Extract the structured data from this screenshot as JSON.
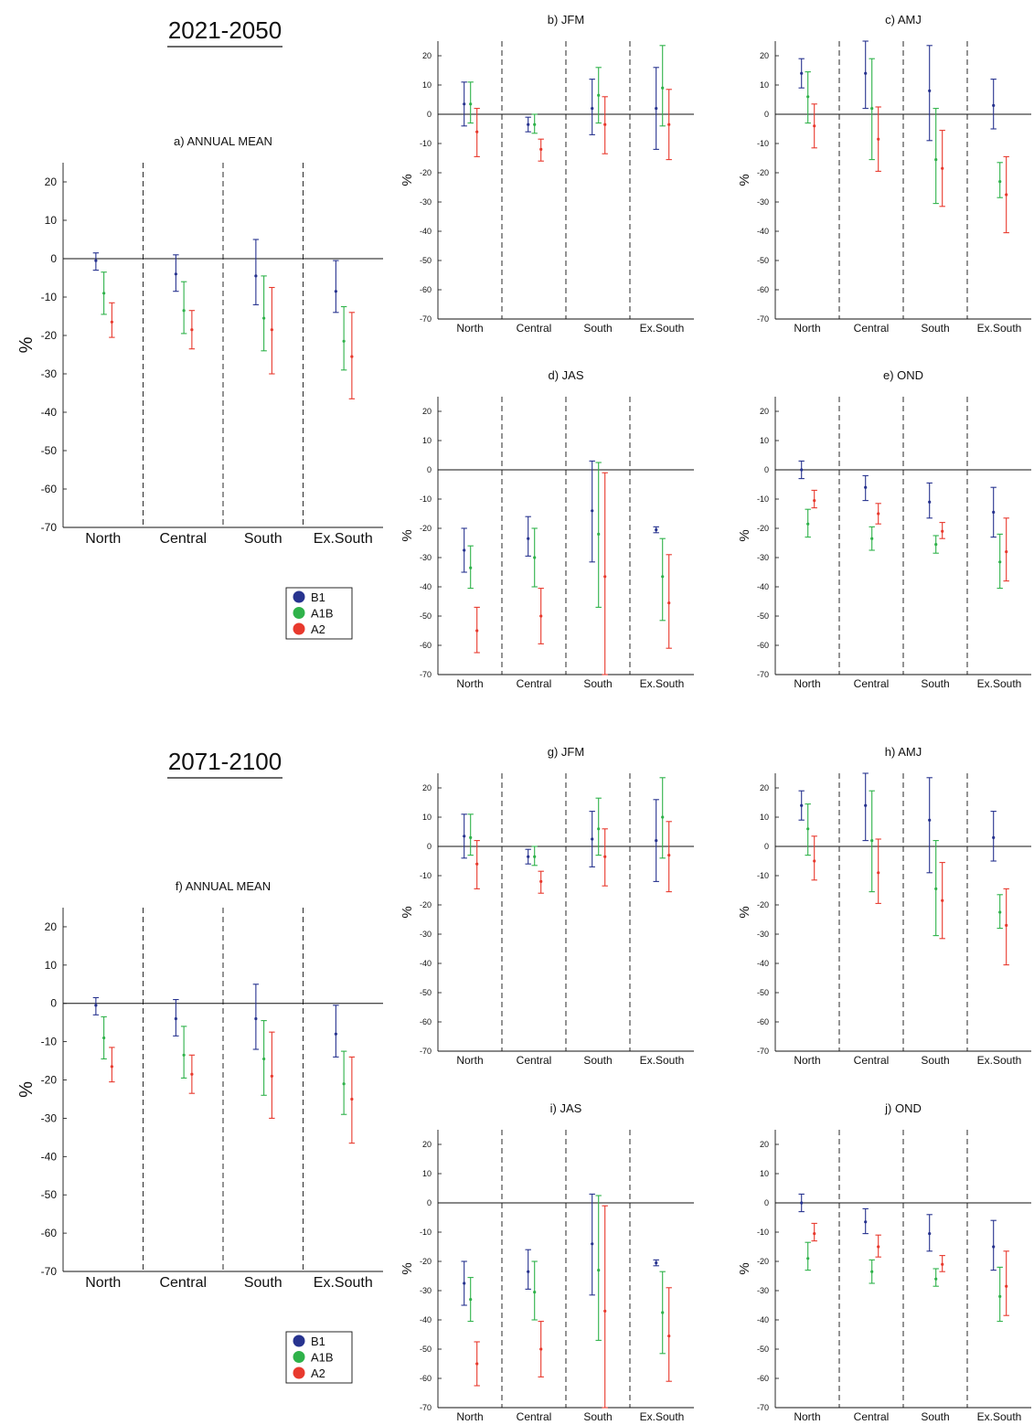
{
  "periods": [
    {
      "title": "2021-2050"
    },
    {
      "title": "2071-2100"
    }
  ],
  "legend": [
    {
      "name": "B1",
      "color": "#27338f"
    },
    {
      "name": "A1B",
      "color": "#2fb24a"
    },
    {
      "name": "A2",
      "color": "#e8392d"
    }
  ],
  "chart_data": [
    {
      "type": "errorbar",
      "title": "a) ANNUAL MEAN",
      "ylabel": "%",
      "ylim": [
        -70,
        25
      ],
      "yticks": [
        20,
        10,
        0,
        -10,
        -20,
        -30,
        -40,
        -50,
        -60,
        -70
      ],
      "categories": [
        "North",
        "Central",
        "South",
        "Ex.South"
      ],
      "series": [
        {
          "name": "B1",
          "values": [
            [
              -0.5,
              -3,
              1.5
            ],
            [
              -4,
              -8.5,
              1
            ],
            [
              -4.5,
              -12,
              5
            ],
            [
              -8.5,
              -14,
              -0.5
            ]
          ]
        },
        {
          "name": "A1B",
          "values": [
            [
              -9,
              -14.5,
              -3.5
            ],
            [
              -13.5,
              -19.5,
              -6
            ],
            [
              -15.5,
              -24,
              -4.5
            ],
            [
              -21.5,
              -29,
              -12.5
            ]
          ]
        },
        {
          "name": "A2",
          "values": [
            [
              -16.5,
              -20.5,
              -11.5
            ],
            [
              -18.5,
              -23.5,
              -13.5
            ],
            [
              -18.5,
              -30,
              -7.5
            ],
            [
              -25.5,
              -36.5,
              -14
            ]
          ]
        }
      ]
    },
    {
      "type": "errorbar",
      "title": "b) JFM",
      "ylabel": "%",
      "ylim": [
        -70,
        25
      ],
      "yticks": [
        20,
        10,
        0,
        -10,
        -20,
        -30,
        -40,
        -50,
        -60,
        -70
      ],
      "categories": [
        "North",
        "Central",
        "South",
        "Ex.South"
      ],
      "series": [
        {
          "name": "B1",
          "values": [
            [
              3.5,
              -4,
              11
            ],
            [
              -3.5,
              -6,
              -1
            ],
            [
              2,
              -7,
              12
            ],
            [
              2,
              -12,
              16
            ]
          ]
        },
        {
          "name": "A1B",
          "values": [
            [
              3.5,
              -3,
              11
            ],
            [
              -3.5,
              -6.5,
              0
            ],
            [
              6.5,
              -3,
              16
            ],
            [
              9,
              -4,
              23.5
            ]
          ]
        },
        {
          "name": "A2",
          "values": [
            [
              -6,
              -14.5,
              2
            ],
            [
              -12,
              -16,
              -8.5
            ],
            [
              -3.5,
              -13.5,
              6
            ],
            [
              -3.5,
              -15.5,
              8.5
            ]
          ]
        }
      ]
    },
    {
      "type": "errorbar",
      "title": "c) AMJ",
      "ylabel": "%",
      "ylim": [
        -70,
        25
      ],
      "yticks": [
        20,
        10,
        0,
        -10,
        -20,
        -30,
        -40,
        -50,
        -60,
        -70
      ],
      "categories": [
        "North",
        "Central",
        "South",
        "Ex.South"
      ],
      "series": [
        {
          "name": "B1",
          "values": [
            [
              14,
              9,
              19
            ],
            [
              14,
              2,
              25
            ],
            [
              8,
              -9,
              23.5
            ],
            [
              3,
              -5,
              12
            ]
          ]
        },
        {
          "name": "A1B",
          "values": [
            [
              6,
              -3,
              14.5
            ],
            [
              2,
              -15.5,
              19
            ],
            [
              -15.5,
              -30.5,
              2
            ],
            [
              -23,
              -28.5,
              -16.5
            ]
          ]
        },
        {
          "name": "A2",
          "values": [
            [
              -4,
              -11.5,
              3.5
            ],
            [
              -8.5,
              -19.5,
              2.5
            ],
            [
              -18.5,
              -31.5,
              -5.5
            ],
            [
              -27.5,
              -40.5,
              -14.5
            ]
          ]
        }
      ]
    },
    {
      "type": "errorbar",
      "title": "d) JAS",
      "ylabel": "%",
      "ylim": [
        -70,
        25
      ],
      "yticks": [
        20,
        10,
        0,
        -10,
        -20,
        -30,
        -40,
        -50,
        -60,
        -70
      ],
      "categories": [
        "North",
        "Central",
        "South",
        "Ex.South"
      ],
      "series": [
        {
          "name": "B1",
          "values": [
            [
              -27.5,
              -35,
              -20
            ],
            [
              -23.5,
              -29.5,
              -16
            ],
            [
              -14,
              -31.5,
              3
            ],
            [
              -20.5,
              -21.5,
              -19.5
            ]
          ]
        },
        {
          "name": "A1B",
          "values": [
            [
              -33.5,
              -40.5,
              -26
            ],
            [
              -30,
              -40,
              -20
            ],
            [
              -22,
              -47,
              2.5
            ],
            [
              -36.5,
              -51.5,
              -23.5
            ]
          ]
        },
        {
          "name": "A2",
          "values": [
            [
              -55,
              -62.5,
              -47
            ],
            [
              -50,
              -59.5,
              -40.5
            ],
            [
              -36.5,
              -70,
              -1
            ],
            [
              -45.5,
              -61,
              -29
            ]
          ]
        }
      ]
    },
    {
      "type": "errorbar",
      "title": "e) OND",
      "ylabel": "%",
      "ylim": [
        -70,
        25
      ],
      "yticks": [
        20,
        10,
        0,
        -10,
        -20,
        -30,
        -40,
        -50,
        -60,
        -70
      ],
      "categories": [
        "North",
        "Central",
        "South",
        "Ex.South"
      ],
      "series": [
        {
          "name": "B1",
          "values": [
            [
              0,
              -3,
              3
            ],
            [
              -6,
              -10.5,
              -2
            ],
            [
              -11,
              -16.5,
              -4.5
            ],
            [
              -14.5,
              -23,
              -6
            ]
          ]
        },
        {
          "name": "A1B",
          "values": [
            [
              -18.5,
              -23,
              -13.5
            ],
            [
              -23.5,
              -27.5,
              -19.5
            ],
            [
              -25.5,
              -28.5,
              -22.5
            ],
            [
              -31.5,
              -40.5,
              -22
            ]
          ]
        },
        {
          "name": "A2",
          "values": [
            [
              -10.5,
              -13,
              -7
            ],
            [
              -15,
              -18.5,
              -11.5
            ],
            [
              -21,
              -23.5,
              -18
            ],
            [
              -28,
              -38,
              -16.5
            ]
          ]
        }
      ]
    },
    {
      "type": "errorbar",
      "title": "f) ANNUAL MEAN",
      "ylabel": "%",
      "ylim": [
        -70,
        25
      ],
      "yticks": [
        20,
        10,
        0,
        -10,
        -20,
        -30,
        -40,
        -50,
        -60,
        -70
      ],
      "categories": [
        "North",
        "Central",
        "South",
        "Ex.South"
      ],
      "series": [
        {
          "name": "B1",
          "values": [
            [
              -0.5,
              -3,
              1.5
            ],
            [
              -4,
              -8.5,
              1
            ],
            [
              -4,
              -12,
              5
            ],
            [
              -8,
              -14,
              -0.5
            ]
          ]
        },
        {
          "name": "A1B",
          "values": [
            [
              -9,
              -14.5,
              -3.5
            ],
            [
              -13.5,
              -19.5,
              -6
            ],
            [
              -14.5,
              -24,
              -4.5
            ],
            [
              -21,
              -29,
              -12.5
            ]
          ]
        },
        {
          "name": "A2",
          "values": [
            [
              -16.5,
              -20.5,
              -11.5
            ],
            [
              -18.5,
              -23.5,
              -13.5
            ],
            [
              -19,
              -30,
              -7.5
            ],
            [
              -25,
              -36.5,
              -14
            ]
          ]
        }
      ]
    },
    {
      "type": "errorbar",
      "title": "g) JFM",
      "ylabel": "%",
      "ylim": [
        -70,
        25
      ],
      "yticks": [
        20,
        10,
        0,
        -10,
        -20,
        -30,
        -40,
        -50,
        -60,
        -70
      ],
      "categories": [
        "North",
        "Central",
        "South",
        "Ex.South"
      ],
      "series": [
        {
          "name": "B1",
          "values": [
            [
              3.5,
              -4,
              11
            ],
            [
              -3.5,
              -6,
              -1
            ],
            [
              2.5,
              -7,
              12
            ],
            [
              2,
              -12,
              16
            ]
          ]
        },
        {
          "name": "A1B",
          "values": [
            [
              3,
              -3,
              11
            ],
            [
              -3.5,
              -6.5,
              0
            ],
            [
              6,
              -3,
              16.5
            ],
            [
              10,
              -4,
              23.5
            ]
          ]
        },
        {
          "name": "A2",
          "values": [
            [
              -6,
              -14.5,
              2
            ],
            [
              -12,
              -16,
              -8.5
            ],
            [
              -3.5,
              -13.5,
              6
            ],
            [
              -3,
              -15.5,
              8.5
            ]
          ]
        }
      ]
    },
    {
      "type": "errorbar",
      "title": "h) AMJ",
      "ylabel": "%",
      "ylim": [
        -70,
        25
      ],
      "yticks": [
        20,
        10,
        0,
        -10,
        -20,
        -30,
        -40,
        -50,
        -60,
        -70
      ],
      "categories": [
        "North",
        "Central",
        "South",
        "Ex.South"
      ],
      "series": [
        {
          "name": "B1",
          "values": [
            [
              14,
              9,
              19
            ],
            [
              14,
              2,
              25
            ],
            [
              9,
              -9,
              23.5
            ],
            [
              3,
              -5,
              12
            ]
          ]
        },
        {
          "name": "A1B",
          "values": [
            [
              6,
              -3,
              14.5
            ],
            [
              2,
              -15.5,
              19
            ],
            [
              -14.5,
              -30.5,
              2
            ],
            [
              -22.5,
              -28,
              -16.5
            ]
          ]
        },
        {
          "name": "A2",
          "values": [
            [
              -5,
              -11.5,
              3.5
            ],
            [
              -9,
              -19.5,
              2.5
            ],
            [
              -18.5,
              -31.5,
              -5.5
            ],
            [
              -27,
              -40.5,
              -14.5
            ]
          ]
        }
      ]
    },
    {
      "type": "errorbar",
      "title": "i) JAS",
      "ylabel": "%",
      "ylim": [
        -70,
        25
      ],
      "yticks": [
        20,
        10,
        0,
        -10,
        -20,
        -30,
        -40,
        -50,
        -60,
        -70
      ],
      "categories": [
        "North",
        "Central",
        "South",
        "Ex.South"
      ],
      "series": [
        {
          "name": "B1",
          "values": [
            [
              -27.5,
              -35,
              -20
            ],
            [
              -23.5,
              -29.5,
              -16
            ],
            [
              -14,
              -31.5,
              3
            ],
            [
              -20.5,
              -21.5,
              -19.5
            ]
          ]
        },
        {
          "name": "A1B",
          "values": [
            [
              -33,
              -40.5,
              -25.5
            ],
            [
              -30.5,
              -40,
              -20
            ],
            [
              -23,
              -47,
              2.5
            ],
            [
              -37.5,
              -51.5,
              -23.5
            ]
          ]
        },
        {
          "name": "A2",
          "values": [
            [
              -55,
              -62.5,
              -47.5
            ],
            [
              -50,
              -59.5,
              -40.5
            ],
            [
              -37,
              -70,
              -1
            ],
            [
              -45.5,
              -61,
              -29
            ]
          ]
        }
      ]
    },
    {
      "type": "errorbar",
      "title": "j) OND",
      "ylabel": "%",
      "ylim": [
        -70,
        25
      ],
      "yticks": [
        20,
        10,
        0,
        -10,
        -20,
        -30,
        -40,
        -50,
        -60,
        -70
      ],
      "categories": [
        "North",
        "Central",
        "South",
        "Ex.South"
      ],
      "series": [
        {
          "name": "B1",
          "values": [
            [
              0,
              -3,
              3
            ],
            [
              -6.5,
              -10.5,
              -2
            ],
            [
              -10.5,
              -16.5,
              -4
            ],
            [
              -15,
              -23,
              -6
            ]
          ]
        },
        {
          "name": "A1B",
          "values": [
            [
              -19,
              -23,
              -13.5
            ],
            [
              -23.5,
              -27.5,
              -19.5
            ],
            [
              -26,
              -28.5,
              -22.5
            ],
            [
              -32,
              -40.5,
              -22
            ]
          ]
        },
        {
          "name": "A2",
          "values": [
            [
              -10.5,
              -13,
              -7
            ],
            [
              -15,
              -18.5,
              -11
            ],
            [
              -21,
              -23.5,
              -18
            ],
            [
              -28.5,
              -38.5,
              -16.5
            ]
          ]
        }
      ]
    }
  ]
}
